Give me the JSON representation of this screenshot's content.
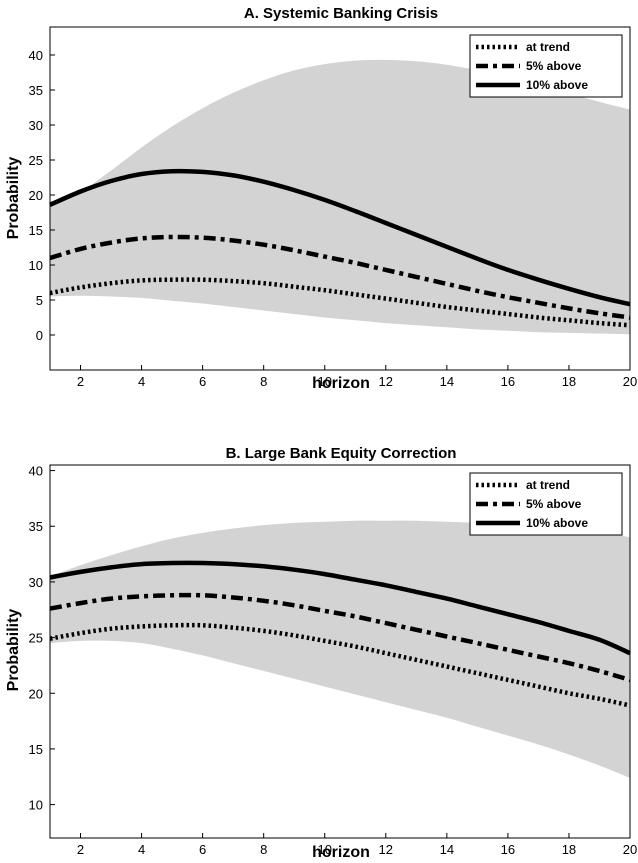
{
  "chart_data": [
    {
      "type": "line",
      "title": "A. Systemic Banking Crisis",
      "xlabel": "horizon",
      "ylabel": "Probability",
      "xlim": [
        1,
        20
      ],
      "ylim": [
        -5,
        44
      ],
      "xticks": [
        2,
        4,
        6,
        8,
        10,
        12,
        14,
        16,
        18,
        20
      ],
      "yticks": [
        0,
        5,
        10,
        15,
        20,
        25,
        30,
        35,
        40
      ],
      "legend_position": "top-right",
      "band_color": "#d3d3d3",
      "x": [
        1,
        2,
        3,
        4,
        5,
        6,
        7,
        8,
        9,
        10,
        11,
        12,
        13,
        14,
        15,
        16,
        17,
        18,
        19,
        20
      ],
      "series": [
        {
          "name": "at trend",
          "style": "dotted",
          "values": [
            6.0,
            6.8,
            7.4,
            7.8,
            7.9,
            7.9,
            7.7,
            7.4,
            6.9,
            6.4,
            5.8,
            5.2,
            4.6,
            4.0,
            3.5,
            3.0,
            2.5,
            2.1,
            1.7,
            1.4
          ]
        },
        {
          "name": "5% above",
          "style": "dashdot",
          "values": [
            11.0,
            12.3,
            13.2,
            13.8,
            14.0,
            13.9,
            13.5,
            12.9,
            12.1,
            11.2,
            10.3,
            9.3,
            8.3,
            7.3,
            6.3,
            5.4,
            4.6,
            3.8,
            3.1,
            2.5
          ]
        },
        {
          "name": "10% above",
          "style": "solid",
          "values": [
            18.6,
            20.5,
            22.0,
            23.0,
            23.4,
            23.3,
            22.8,
            21.9,
            20.7,
            19.3,
            17.7,
            16.0,
            14.3,
            12.6,
            10.9,
            9.3,
            7.9,
            6.6,
            5.4,
            4.4
          ]
        }
      ],
      "band": {
        "upper": [
          18.8,
          20.5,
          23.5,
          26.8,
          29.8,
          32.4,
          34.6,
          36.4,
          37.8,
          38.7,
          39.2,
          39.3,
          39.1,
          38.6,
          37.8,
          36.8,
          35.7,
          34.5,
          33.3,
          32.2
        ],
        "lower": [
          5.5,
          5.6,
          5.5,
          5.3,
          4.9,
          4.5,
          4.0,
          3.5,
          3.0,
          2.5,
          2.1,
          1.7,
          1.4,
          1.1,
          0.8,
          0.6,
          0.4,
          0.3,
          0.2,
          0.1
        ]
      }
    },
    {
      "type": "line",
      "title": "B. Large Bank Equity Correction",
      "xlabel": "horizon",
      "ylabel": "Probability",
      "xlim": [
        1,
        20
      ],
      "ylim": [
        7,
        40.5
      ],
      "xticks": [
        2,
        4,
        6,
        8,
        10,
        12,
        14,
        16,
        18,
        20
      ],
      "yticks": [
        10,
        15,
        20,
        25,
        30,
        35,
        40
      ],
      "legend_position": "top-right",
      "band_color": "#d3d3d3",
      "x": [
        1,
        2,
        3,
        4,
        5,
        6,
        7,
        8,
        9,
        10,
        11,
        12,
        13,
        14,
        15,
        16,
        17,
        18,
        19,
        20
      ],
      "series": [
        {
          "name": "at trend",
          "style": "dotted",
          "values": [
            24.9,
            25.4,
            25.8,
            26.0,
            26.1,
            26.1,
            25.9,
            25.6,
            25.2,
            24.7,
            24.2,
            23.6,
            23.0,
            22.4,
            21.8,
            21.2,
            20.6,
            20.0,
            19.5,
            18.9
          ]
        },
        {
          "name": "5% above",
          "style": "dashdot",
          "values": [
            27.6,
            28.1,
            28.5,
            28.7,
            28.8,
            28.8,
            28.6,
            28.3,
            27.9,
            27.4,
            26.9,
            26.3,
            25.7,
            25.1,
            24.5,
            23.9,
            23.3,
            22.7,
            22.0,
            21.2
          ]
        },
        {
          "name": "10% above",
          "style": "solid",
          "values": [
            30.4,
            30.9,
            31.3,
            31.6,
            31.7,
            31.7,
            31.6,
            31.4,
            31.1,
            30.7,
            30.2,
            29.7,
            29.1,
            28.5,
            27.8,
            27.1,
            26.4,
            25.6,
            24.8,
            23.6
          ]
        }
      ],
      "band": {
        "upper": [
          30.5,
          31.5,
          32.4,
          33.2,
          33.9,
          34.4,
          34.8,
          35.1,
          35.3,
          35.4,
          35.5,
          35.5,
          35.5,
          35.4,
          35.3,
          35.2,
          35.0,
          34.8,
          34.5,
          34.0
        ],
        "lower": [
          24.5,
          24.7,
          24.7,
          24.5,
          24.0,
          23.4,
          22.7,
          22.0,
          21.3,
          20.6,
          19.9,
          19.2,
          18.5,
          17.8,
          17.0,
          16.2,
          15.4,
          14.5,
          13.5,
          12.4
        ]
      }
    }
  ]
}
